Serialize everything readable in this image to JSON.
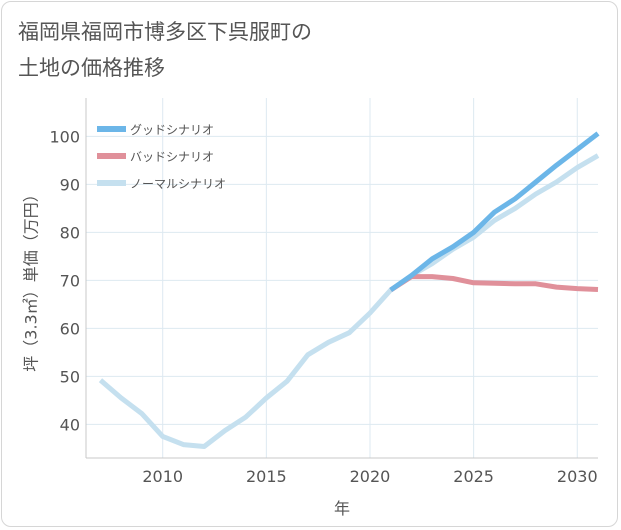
{
  "title_line1": "福岡県福岡市博多区下呉服町の",
  "title_line2": "土地の価格推移",
  "chart_data": {
    "type": "line",
    "xlabel": "年",
    "ylabel": "坪（3.3㎡）単価（万円）",
    "xlim": [
      2006.3,
      2031
    ],
    "ylim": [
      33,
      108
    ],
    "xticks": [
      2010,
      2015,
      2020,
      2025,
      2030
    ],
    "yticks": [
      40,
      50,
      60,
      70,
      80,
      90,
      100
    ],
    "grid": true,
    "legend_position": "top-left",
    "series": [
      {
        "name": "グッドシナリオ",
        "color": "#6cb6e8",
        "x": [
          2021,
          2022,
          2023,
          2024,
          2025,
          2026,
          2027,
          2028,
          2029,
          2030,
          2031
        ],
        "values": [
          68,
          71,
          74.5,
          77,
          80,
          84.2,
          87,
          90.5,
          94,
          97.3,
          100.6
        ]
      },
      {
        "name": "バッドシナリオ",
        "color": "#e0909a",
        "x": [
          2021,
          2022,
          2023,
          2024,
          2025,
          2026,
          2027,
          2028,
          2029,
          2030,
          2031
        ],
        "values": [
          68,
          70.8,
          70.8,
          70.4,
          69.5,
          69.4,
          69.3,
          69.3,
          68.6,
          68.3,
          68.1
        ]
      },
      {
        "name": "ノーマルシナリオ",
        "color": "#c5e0ef",
        "x": [
          2007,
          2008,
          2009,
          2010,
          2011,
          2012,
          2013,
          2014,
          2015,
          2016,
          2017,
          2018,
          2019,
          2020,
          2021,
          2022,
          2023,
          2024,
          2025,
          2026,
          2027,
          2028,
          2029,
          2030,
          2031
        ],
        "values": [
          49.2,
          45.5,
          42.2,
          37.5,
          35.8,
          35.4,
          38.7,
          41.5,
          45.5,
          49,
          54.5,
          57.1,
          59.1,
          63.2,
          68,
          71,
          73.5,
          76.5,
          79,
          82.5,
          85,
          88,
          90.5,
          93.5,
          96
        ]
      }
    ]
  }
}
